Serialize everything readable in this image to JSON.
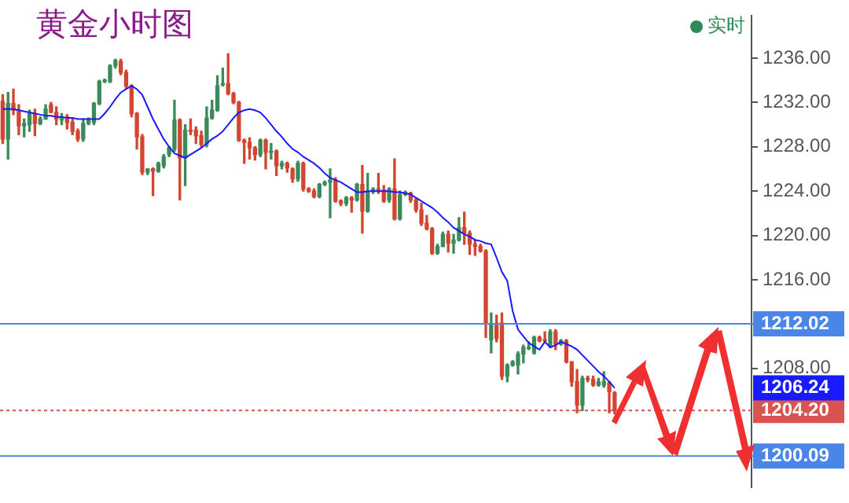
{
  "chart_data": {
    "type": "candlestick",
    "title": "黄金小时图",
    "categories": [
      null,
      null,
      null,
      null,
      null,
      null,
      null,
      null,
      null,
      null,
      null,
      null,
      null,
      null,
      null,
      null,
      null,
      null,
      null,
      null,
      null,
      null,
      null,
      null,
      null,
      null,
      null,
      null,
      null,
      null,
      null,
      null,
      null,
      null,
      null,
      null,
      null,
      null,
      null,
      null,
      null,
      null,
      null,
      null,
      null,
      null,
      null,
      null,
      null,
      null,
      null,
      null,
      null,
      null,
      null,
      null,
      null,
      null,
      null,
      null,
      null,
      null,
      null,
      null,
      null,
      null,
      null,
      null,
      null,
      null,
      null,
      null,
      null,
      null,
      null,
      null,
      null,
      null,
      null,
      null,
      null,
      null,
      null,
      null,
      null,
      null,
      null,
      null,
      null,
      null,
      null,
      null,
      null,
      null,
      null,
      null,
      null,
      null,
      null,
      null,
      null,
      null,
      null,
      null,
      null,
      null,
      null,
      null,
      null,
      null,
      null,
      null,
      null,
      null,
      null,
      null,
      null,
      null,
      null,
      null,
      null,
      null,
      null,
      null,
      null,
      null,
      null,
      null,
      null,
      null,
      null,
      null,
      null,
      null,
      null,
      null,
      null,
      null,
      null,
      null
    ],
    "series": [
      {
        "type": "line",
        "color": "#1a1aff",
        "marker": "none",
        "values": [
          1231.4,
          1231.4,
          1231.4,
          1231.3,
          1231.2,
          1231.1,
          1231.0,
          1230.9,
          1230.8,
          1230.8,
          1230.7,
          1230.7,
          1230.6,
          1230.6,
          1230.5,
          1230.5,
          1230.5,
          1230.5,
          1230.5,
          1231.0,
          1231.6,
          1232.3,
          1232.9,
          1233.2,
          1233.5,
          1233.2,
          1232.7,
          1231.6,
          1230.5,
          1229.6,
          1228.7,
          1228.0,
          1227.4,
          1227.2,
          1227.0,
          1227.3,
          1227.6,
          1227.9,
          1228.3,
          1228.7,
          1229.0,
          1229.4,
          1230.0,
          1230.6,
          1231.1,
          1231.3,
          1231.4,
          1231.3,
          1231.1,
          1230.6,
          1230.0,
          1229.4,
          1228.9,
          1228.3,
          1227.8,
          1227.5,
          1227.1,
          1226.8,
          1226.5,
          1226.1,
          1225.6,
          1225.2,
          1225.0,
          1224.8,
          1224.5,
          1224.2,
          1223.9,
          1223.9,
          1224.0,
          1224.0,
          1224.0,
          1224.0,
          1224.0,
          1223.9,
          1223.9,
          1223.8,
          1223.7,
          1223.4,
          1223.1,
          1222.8,
          1222.5,
          1222.1,
          1221.6,
          1221.2,
          1220.7,
          1220.4,
          1220.1,
          1219.9,
          1219.6,
          1219.5,
          1219.3,
          1219.2,
          1218.0,
          1216.7,
          1215.9,
          1213.2,
          1211.5,
          1210.9,
          1210.3,
          1210.0,
          1209.7,
          1210.4,
          1209.9,
          1210.1,
          1210.4,
          1210.2,
          1210.0,
          1209.7,
          1209.2,
          1208.7,
          1208.2,
          1207.7,
          1207.3,
          1206.8,
          1206.24,
          null,
          null,
          null,
          null,
          null,
          null,
          null,
          null,
          null,
          null,
          null,
          null,
          null,
          null,
          null,
          null,
          null,
          null,
          null,
          null,
          null,
          null,
          null,
          null,
          null
        ]
      },
      {
        "colors": [
          "#d2452f",
          "#3b8a5a",
          "#d2452f",
          "#d2452f",
          "#3b8a5a",
          "#3b8a5a",
          "#d2452f",
          "#3b8a5a",
          "#3b8a5a",
          "#d2452f",
          "#d2452f",
          "#3b8a5a",
          "#d2452f",
          "#d2452f",
          "#d2452f",
          "#3b8a5a",
          "#3b8a5a",
          "#3b8a5a",
          "#3b8a5a",
          "#3b8a5a",
          "#3b8a5a",
          "#3b8a5a",
          "#d2452f",
          "#d2452f",
          "#d2452f",
          "#d2452f",
          "#d2452f",
          "#3b8a5a",
          "#d2452f",
          "#3b8a5a",
          "#3b8a5a",
          "#3b8a5a",
          "#3b8a5a",
          "#d2452f",
          "#3b8a5a",
          "#d2452f",
          "#d2452f",
          "#d2452f",
          "#3b8a5a",
          "#3b8a5a",
          "#3b8a5a",
          "#3b8a5a",
          "#d2452f",
          "#d2452f",
          "#d2452f",
          "#d2452f",
          "#d2452f",
          "#d2452f",
          "#3b8a5a",
          "#d2452f",
          "#3b8a5a",
          "#d2452f",
          "#3b8a5a",
          "#d2452f",
          "#d2452f",
          "#3b8a5a",
          "#d2452f",
          "#d2452f",
          "#d2452f",
          "#3b8a5a",
          "#3b8a5a",
          "#3b8a5a",
          "#d2452f",
          "#d2452f",
          "#3b8a5a",
          "#d2452f",
          "#3b8a5a",
          "#d2452f",
          "#3b8a5a",
          "#3b8a5a",
          "#d2452f",
          "#d2452f",
          "#3b8a5a",
          "#d2452f",
          "#3b8a5a",
          "#3b8a5a",
          "#d2452f",
          "#d2452f",
          "#d2452f",
          "#d2452f",
          "#d2452f",
          "#3b8a5a",
          "#3b8a5a",
          "#d2452f",
          "#3b8a5a",
          "#3b8a5a",
          "#d2452f",
          "#d2452f",
          "#d2452f",
          "#d2452f",
          "#d2452f",
          "#3b8a5a",
          "#d2452f",
          "#d2452f",
          "#3b8a5a",
          "#3b8a5a",
          "#3b8a5a",
          "#3b8a5a",
          "#3b8a5a",
          "#3b8a5a",
          "#d2452f",
          "#d2452f",
          "#3b8a5a",
          "#d2452f",
          "#3b8a5a",
          "#d2452f",
          "#d2452f",
          "#d2452f",
          "#3b8a5a",
          "#d2452f",
          "#d2452f",
          "#3b8a5a",
          "#3b8a5a",
          "#d2452f",
          "#d2452f",
          null,
          null,
          null,
          null,
          null,
          null,
          null,
          null,
          null,
          null,
          null,
          null,
          null,
          null,
          null,
          null,
          null,
          null,
          null,
          null,
          null,
          null,
          null,
          null,
          null
        ],
        "ohlc": [
          [
            1232.1,
            1232.7,
            1228.3,
            1228.7
          ],
          [
            1228.7,
            1232.9,
            1226.9,
            1231.9
          ],
          [
            1231.9,
            1233.2,
            1230.9,
            1231.3
          ],
          [
            1231.3,
            1231.8,
            1229.1,
            1229.9
          ],
          [
            1229.9,
            1230.5,
            1228.9,
            1230.1
          ],
          [
            1230.0,
            1231.3,
            1229.4,
            1231.0
          ],
          [
            1231.0,
            1231.4,
            1229.0,
            1230.1
          ],
          [
            1230.1,
            1230.7,
            1230.0,
            1230.5
          ],
          [
            1230.5,
            1231.8,
            1230.5,
            1231.4
          ],
          [
            1231.8,
            1232.0,
            1231.1,
            1231.1
          ],
          [
            1231.1,
            1231.6,
            1230.0,
            1230.5
          ],
          [
            1230.4,
            1231.0,
            1230.0,
            1230.7
          ],
          [
            1230.7,
            1230.9,
            1229.6,
            1230.2
          ],
          [
            1230.2,
            1230.5,
            1229.1,
            1229.4
          ],
          [
            1229.4,
            1229.6,
            1228.5,
            1228.7
          ],
          [
            1228.7,
            1230.5,
            1228.5,
            1230.1
          ],
          [
            1230.1,
            1230.6,
            1230.0,
            1230.5
          ],
          [
            1230.2,
            1232.0,
            1230.0,
            1231.9
          ],
          [
            1231.9,
            1234.0,
            1231.8,
            1233.9
          ],
          [
            1233.9,
            1234.1,
            1233.8,
            1234.0
          ],
          [
            1233.9,
            1235.4,
            1233.8,
            1235.3
          ],
          [
            1235.3,
            1235.9,
            1235.1,
            1235.8
          ],
          [
            1235.7,
            1235.9,
            1234.5,
            1234.7
          ],
          [
            1234.7,
            1234.9,
            1233.3,
            1233.5
          ],
          [
            1233.5,
            1233.6,
            1230.7,
            1231.0
          ],
          [
            1231.0,
            1231.1,
            1227.8,
            1228.9
          ],
          [
            1228.9,
            1229.1,
            1225.5,
            1225.7
          ],
          [
            1225.7,
            1226.0,
            1225.5,
            1226.0
          ],
          [
            1226.0,
            1226.1,
            1223.6,
            1225.8
          ],
          [
            1225.8,
            1226.6,
            1225.7,
            1226.5
          ],
          [
            1226.3,
            1227.3,
            1226.1,
            1227.1
          ],
          [
            1227.3,
            1228.0,
            1227.1,
            1227.9
          ],
          [
            1227.8,
            1232.2,
            1227.6,
            1230.4
          ],
          [
            1230.4,
            1230.5,
            1223.2,
            1227.0
          ],
          [
            1227.0,
            1230.0,
            1224.5,
            1229.5
          ],
          [
            1229.5,
            1230.5,
            1229.1,
            1229.4
          ],
          [
            1229.5,
            1229.8,
            1228.3,
            1229.0
          ],
          [
            1229.0,
            1229.4,
            1228.0,
            1228.2
          ],
          [
            1228.2,
            1231.6,
            1228.0,
            1230.6
          ],
          [
            1230.6,
            1232.2,
            1230.5,
            1231.3
          ],
          [
            1231.3,
            1234.4,
            1231.2,
            1233.5
          ],
          [
            1233.6,
            1235.1,
            1233.5,
            1233.7
          ],
          [
            1233.7,
            1236.4,
            1232.7,
            1232.8
          ],
          [
            1232.8,
            1232.9,
            1231.9,
            1232.0
          ],
          [
            1232.0,
            1232.1,
            1228.5,
            1228.6
          ],
          [
            1228.6,
            1228.7,
            1226.5,
            1228.4
          ],
          [
            1228.4,
            1228.8,
            1226.9,
            1227.9
          ],
          [
            1227.9,
            1228.0,
            1226.8,
            1227.3
          ],
          [
            1227.3,
            1228.7,
            1227.1,
            1228.6
          ],
          [
            1228.6,
            1228.7,
            1226.0,
            1227.5
          ],
          [
            1227.5,
            1228.3,
            1226.9,
            1227.6
          ],
          [
            1227.6,
            1227.7,
            1225.4,
            1226.3
          ],
          [
            1226.3,
            1226.7,
            1226.0,
            1226.5
          ],
          [
            1226.5,
            1226.6,
            1225.7,
            1226.1
          ],
          [
            1226.0,
            1226.1,
            1224.8,
            1225.1
          ],
          [
            1225.1,
            1226.7,
            1224.9,
            1226.5
          ],
          [
            1226.5,
            1226.6,
            1224.0,
            1224.2
          ],
          [
            1224.2,
            1224.3,
            1223.9,
            1224.0
          ],
          [
            1224.0,
            1224.2,
            1223.4,
            1223.5
          ],
          [
            1223.5,
            1224.7,
            1223.4,
            1224.6
          ],
          [
            1224.6,
            1224.9,
            1224.5,
            1224.8
          ],
          [
            1224.8,
            1226.0,
            1221.6,
            1225.0
          ],
          [
            1225.0,
            1225.2,
            1223.0,
            1223.1
          ],
          [
            1223.1,
            1223.2,
            1222.7,
            1222.9
          ],
          [
            1222.9,
            1223.5,
            1222.7,
            1223.4
          ],
          [
            1223.4,
            1223.5,
            1222.1,
            1223.2
          ],
          [
            1223.2,
            1224.7,
            1223.1,
            1224.6
          ],
          [
            1224.6,
            1226.3,
            1220.2,
            1222.2
          ],
          [
            1222.2,
            1225.6,
            1222.1,
            1224.0
          ],
          [
            1224.0,
            1224.3,
            1223.8,
            1224.2
          ],
          [
            1224.2,
            1225.6,
            1223.8,
            1224.0
          ],
          [
            1224.1,
            1224.5,
            1223.0,
            1223.1
          ],
          [
            1223.2,
            1224.3,
            1223.0,
            1224.2
          ],
          [
            1224.2,
            1226.9,
            1221.4,
            1221.5
          ],
          [
            1221.5,
            1224.0,
            1221.4,
            1223.7
          ],
          [
            1223.7,
            1224.0,
            1223.6,
            1223.9
          ],
          [
            1223.8,
            1223.9,
            1223.0,
            1223.2
          ],
          [
            1223.2,
            1223.4,
            1222.1,
            1222.3
          ],
          [
            1222.3,
            1222.9,
            1220.9,
            1221.1
          ],
          [
            1221.1,
            1221.8,
            1220.5,
            1220.6
          ],
          [
            1220.6,
            1220.7,
            1218.3,
            1218.4
          ],
          [
            1218.4,
            1219.2,
            1218.3,
            1219.0
          ],
          [
            1219.0,
            1220.3,
            1219.0,
            1220.1
          ],
          [
            1220.1,
            1220.4,
            1218.5,
            1219.3
          ],
          [
            1219.3,
            1220.1,
            1218.4,
            1219.6
          ],
          [
            1219.6,
            1221.6,
            1219.5,
            1220.7
          ],
          [
            1220.7,
            1222.1,
            1219.2,
            1220.2
          ],
          [
            1220.2,
            1220.4,
            1218.3,
            1219.2
          ],
          [
            1219.2,
            1219.6,
            1218.2,
            1219.0
          ],
          [
            1219.0,
            1219.2,
            1218.5,
            1218.6
          ],
          [
            1218.6,
            1218.7,
            1210.8,
            1212.0
          ],
          [
            1210.6,
            1213.0,
            1209.4,
            1212.0
          ],
          [
            1211.9,
            1212.8,
            1210.4,
            1210.7
          ],
          [
            1212.1,
            1213.0,
            1207.0,
            1207.3
          ],
          [
            1207.3,
            1208.4,
            1206.8,
            1208.3
          ],
          [
            1208.3,
            1208.7,
            1208.2,
            1208.6
          ],
          [
            1208.3,
            1209.5,
            1207.5,
            1209.3
          ],
          [
            1209.3,
            1210.1,
            1208.5,
            1209.9
          ],
          [
            1209.8,
            1210.4,
            1209.7,
            1209.9
          ],
          [
            1209.4,
            1210.9,
            1209.3,
            1210.8
          ],
          [
            1210.8,
            1210.9,
            1210.4,
            1210.5
          ],
          [
            1210.6,
            1211.3,
            1210.4,
            1210.5
          ],
          [
            1210.1,
            1211.5,
            1209.9,
            1211.3
          ],
          [
            1211.3,
            1211.5,
            1209.7,
            1210.2
          ],
          [
            1210.2,
            1210.6,
            1210.1,
            1210.5
          ],
          [
            1210.5,
            1210.6,
            1208.5,
            1208.6
          ],
          [
            1208.6,
            1208.6,
            1206.4,
            1206.8
          ],
          [
            1206.8,
            1207.9,
            1204.0,
            1204.7
          ],
          [
            1204.7,
            1207.3,
            1204.2,
            1207.1
          ],
          [
            1207.1,
            1207.3,
            1206.8,
            1207.0
          ],
          [
            1207.0,
            1207.3,
            1206.4,
            1206.5
          ],
          [
            1206.5,
            1207.1,
            1206.4,
            1206.8
          ],
          [
            1206.5,
            1207.7,
            1206.3,
            1206.8
          ],
          [
            1206.7,
            1206.8,
            1204.0,
            1205.9
          ],
          [
            1205.8,
            1205.9,
            1203.9,
            1204.2
          ],
          null,
          null,
          null,
          null,
          null,
          null,
          null,
          null,
          null,
          null,
          null,
          null,
          null,
          null,
          null,
          null,
          null,
          null,
          null,
          null,
          null,
          null,
          null,
          null,
          null
        ]
      }
    ],
    "ylim": [
      1197.3,
      1239.8
    ],
    "yticks": [
      {
        "value": 1208,
        "label": "1208.00"
      },
      {
        "value": 1212,
        "label": null
      },
      {
        "value": 1216,
        "label": "1216.00"
      },
      {
        "value": 1220,
        "label": "1220.00"
      },
      {
        "value": 1224,
        "label": "1224.00"
      },
      {
        "value": 1228,
        "label": "1228.00"
      },
      {
        "value": 1232,
        "label": "1232.00"
      },
      {
        "value": 1236,
        "label": "1236.00"
      }
    ],
    "tick_labels": "y",
    "grid": false,
    "legend": false,
    "ref_lines": [
      {
        "axis": "y",
        "value": 1212.02,
        "label": "1212.02",
        "color": "#4a86e8"
      },
      {
        "axis": "y",
        "value": 1200.09,
        "label": "1200.09",
        "color": "#4a86e8"
      },
      {
        "axis": "y",
        "value": 1204.2,
        "label": "1204.20",
        "color": "#d9534f",
        "line_style": "dotted"
      }
    ],
    "annotations": [
      "实时",
      "1206.24"
    ]
  }
}
